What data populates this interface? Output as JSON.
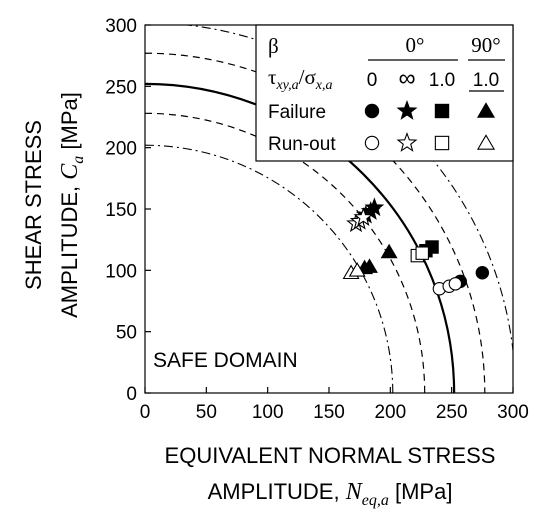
{
  "chart_data": {
    "type": "scatter",
    "xlabel_line1": "EQUIVALENT  NORMAL STRESS",
    "xlabel_line2_prefix": "AMPLITUDE,",
    "xlabel_symbol": "N",
    "xlabel_subscript": "eq,a",
    "xlabel_unit": "[MPa]",
    "ylabel_line1": "SHEAR STRESS",
    "ylabel_line2_prefix": "AMPLITUDE,",
    "ylabel_symbol": "C",
    "ylabel_subscript": "a",
    "ylabel_unit": "[MPa]",
    "annotation": "SAFE DOMAIN",
    "xlim": [
      0,
      300
    ],
    "ylim": [
      0,
      300
    ],
    "xticks": [
      "0",
      "50",
      "100",
      "150",
      "200",
      "250",
      "300"
    ],
    "yticks": [
      "0",
      "50",
      "100",
      "150",
      "200",
      "250",
      "300"
    ],
    "grid": false,
    "legend": {
      "position": "top-right",
      "beta_label": "β",
      "ratio_label": "τxy,a/σx,a",
      "beta_groups": [
        "0°",
        "90°"
      ],
      "ratios": [
        "0",
        "∞",
        "1.0",
        "1.0"
      ],
      "rows": [
        "Failure",
        "Run-out"
      ]
    },
    "curves": [
      {
        "style": "solid",
        "radius": 252
      },
      {
        "style": "dashed",
        "radius": 277
      },
      {
        "style": "dashed",
        "radius": 228
      },
      {
        "style": "dashdot",
        "radius": 302
      },
      {
        "style": "dashdot",
        "radius": 202
      }
    ],
    "series": [
      {
        "marker": "circle",
        "filled": true,
        "points": [
          [
            257,
            91
          ],
          [
            275,
            98
          ]
        ]
      },
      {
        "marker": "circle",
        "filled": false,
        "points": [
          [
            240,
            85
          ],
          [
            248,
            87
          ],
          [
            253,
            89
          ]
        ]
      },
      {
        "marker": "star",
        "filled": true,
        "points": [
          [
            180,
            145
          ],
          [
            184,
            148
          ],
          [
            187,
            151
          ]
        ]
      },
      {
        "marker": "star",
        "filled": false,
        "points": [
          [
            172,
            138
          ],
          [
            175,
            140
          ],
          [
            178,
            143
          ]
        ]
      },
      {
        "marker": "square",
        "filled": true,
        "points": [
          [
            229,
            116
          ],
          [
            234,
            119
          ]
        ]
      },
      {
        "marker": "square",
        "filled": false,
        "points": [
          [
            222,
            112
          ],
          [
            226,
            114
          ]
        ]
      },
      {
        "marker": "triangle",
        "filled": true,
        "points": [
          [
            179,
            102
          ],
          [
            183,
            103
          ],
          [
            199,
            115
          ]
        ]
      },
      {
        "marker": "triangle",
        "filled": false,
        "points": [
          [
            168,
            98
          ],
          [
            173,
            100
          ]
        ]
      }
    ]
  }
}
